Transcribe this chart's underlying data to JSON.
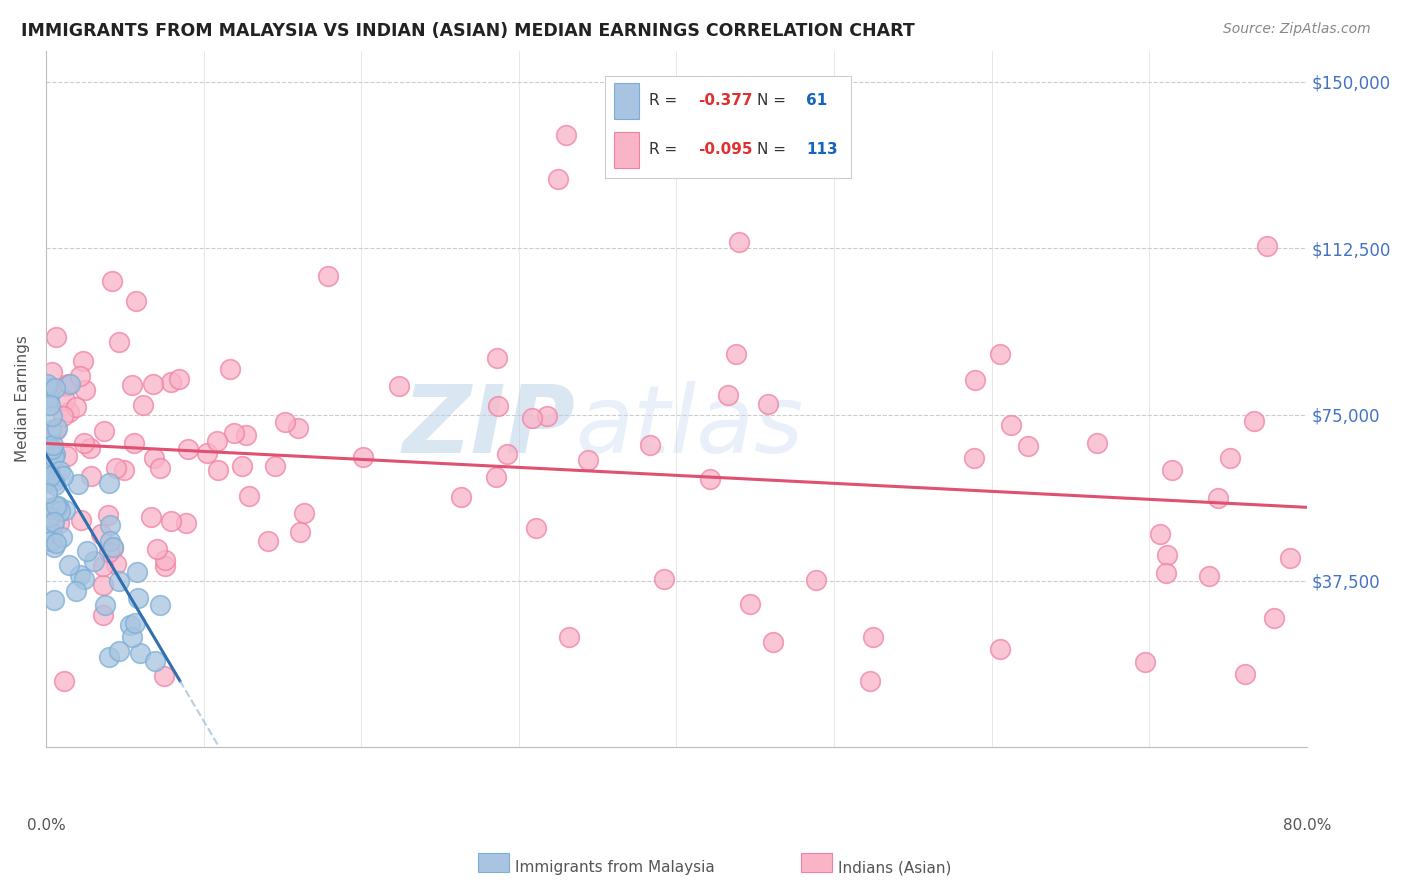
{
  "title": "IMMIGRANTS FROM MALAYSIA VS INDIAN (ASIAN) MEDIAN EARNINGS CORRELATION CHART",
  "source": "Source: ZipAtlas.com",
  "ylabel": "Median Earnings",
  "yticks": [
    0,
    37500,
    75000,
    112500,
    150000
  ],
  "ytick_labels": [
    "",
    "$37,500",
    "$75,000",
    "$112,500",
    "$150,000"
  ],
  "xmin": 0.0,
  "xmax": 0.8,
  "ymin": 0,
  "ymax": 157000,
  "blue_color": "#a8c4e0",
  "blue_edge": "#7aaed6",
  "pink_color": "#f9b4c8",
  "pink_edge": "#f080a0",
  "trend_blue": "#3070b0",
  "trend_pink": "#e05070",
  "trend_blue_dash": "#8ab0d0",
  "watermark_zip": "ZIP",
  "watermark_atlas": "atlas",
  "legend_r1_val": "-0.377",
  "legend_n1_val": "61",
  "legend_r2_val": "-0.095",
  "legend_n2_val": "113",
  "ytick_color": "#4472C4",
  "xtick_color": "#555555"
}
